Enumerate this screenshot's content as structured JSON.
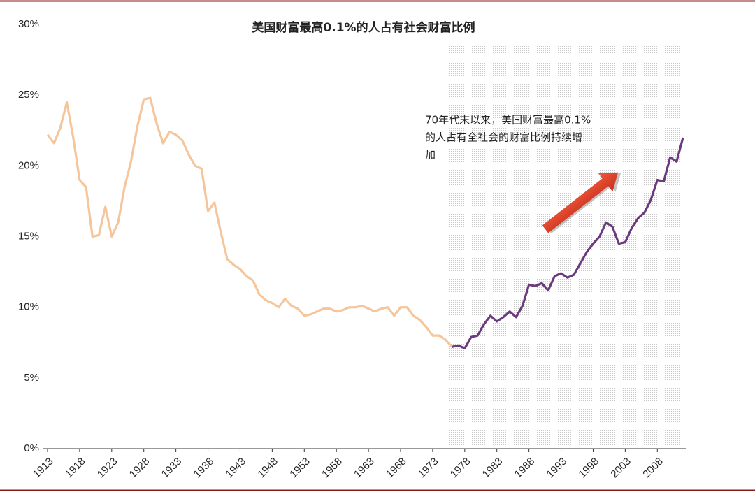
{
  "chart_data": {
    "type": "line",
    "title": "美国财富最高0.1%的人占有社会财富比例",
    "annotation": [
      "70年代末以来，美国财富最高0.1%",
      "的人占有全社会的财富比例持续增",
      "加"
    ],
    "highlight_xrange": [
      1976,
      2012
    ],
    "x": [
      1913,
      1914,
      1915,
      1916,
      1917,
      1918,
      1919,
      1920,
      1921,
      1922,
      1923,
      1924,
      1925,
      1926,
      1927,
      1928,
      1929,
      1930,
      1931,
      1932,
      1933,
      1934,
      1935,
      1936,
      1937,
      1938,
      1939,
      1940,
      1941,
      1942,
      1943,
      1944,
      1945,
      1946,
      1947,
      1948,
      1949,
      1950,
      1951,
      1952,
      1953,
      1954,
      1955,
      1956,
      1957,
      1958,
      1959,
      1960,
      1961,
      1962,
      1963,
      1964,
      1965,
      1966,
      1967,
      1968,
      1969,
      1970,
      1971,
      1972,
      1973,
      1974,
      1975,
      1976,
      1977,
      1978,
      1979,
      1980,
      1981,
      1982,
      1983,
      1984,
      1985,
      1986,
      1987,
      1988,
      1989,
      1990,
      1991,
      1992,
      1993,
      1994,
      1995,
      1996,
      1997,
      1998,
      1999,
      2000,
      2001,
      2002,
      2003,
      2004,
      2005,
      2006,
      2007,
      2008,
      2009,
      2010,
      2011,
      2012
    ],
    "series": [
      {
        "color": "#f5c59b",
        "values": [
          22.2,
          21.6,
          22.7,
          24.5,
          22.0,
          19.0,
          18.5,
          15.0,
          15.1,
          17.1,
          15.0,
          16.0,
          18.5,
          20.3,
          22.8,
          24.7,
          24.8,
          23.0,
          21.6,
          22.4,
          22.2,
          21.8,
          20.8,
          20.0,
          19.8,
          16.8,
          17.4,
          15.3,
          13.4,
          13.0,
          12.7,
          12.2,
          11.9,
          10.9,
          10.5,
          10.3,
          10.0,
          10.6,
          10.1,
          9.9,
          9.4,
          9.5,
          9.7,
          9.9,
          9.9,
          9.7,
          9.8,
          10.0,
          10.0,
          10.1,
          9.9,
          9.7,
          9.9,
          10.0,
          9.4,
          10.0,
          10.0,
          9.4,
          9.1,
          8.6,
          8.0,
          8.0,
          7.7,
          7.2,
          null,
          null,
          null,
          null,
          null,
          null,
          null,
          null,
          null,
          null,
          null,
          null,
          null,
          null,
          null,
          null,
          null,
          null,
          null,
          null,
          null,
          null,
          null,
          null,
          null,
          null,
          null,
          null,
          null,
          null,
          null,
          null,
          null,
          null,
          null,
          null
        ]
      },
      {
        "color": "#6b3a7d",
        "values": [
          null,
          null,
          null,
          null,
          null,
          null,
          null,
          null,
          null,
          null,
          null,
          null,
          null,
          null,
          null,
          null,
          null,
          null,
          null,
          null,
          null,
          null,
          null,
          null,
          null,
          null,
          null,
          null,
          null,
          null,
          null,
          null,
          null,
          null,
          null,
          null,
          null,
          null,
          null,
          null,
          null,
          null,
          null,
          null,
          null,
          null,
          null,
          null,
          null,
          null,
          null,
          null,
          null,
          null,
          null,
          null,
          null,
          null,
          null,
          null,
          null,
          null,
          null,
          7.2,
          7.3,
          7.1,
          7.9,
          8.0,
          8.8,
          9.4,
          9.0,
          9.3,
          9.7,
          9.3,
          10.1,
          11.6,
          11.5,
          11.7,
          11.2,
          12.2,
          12.4,
          12.1,
          12.3,
          13.1,
          13.9,
          14.5,
          15.0,
          16.0,
          15.7,
          14.5,
          14.6,
          15.6,
          16.3,
          16.7,
          17.6,
          19.0,
          18.9,
          20.6,
          20.3,
          22.0
        ]
      }
    ],
    "xlim": [
      1913,
      2012
    ],
    "xticks": [
      1913,
      1918,
      1923,
      1928,
      1933,
      1938,
      1943,
      1948,
      1953,
      1958,
      1963,
      1968,
      1973,
      1978,
      1983,
      1988,
      1993,
      1998,
      2003,
      2008
    ],
    "ylim": [
      0,
      30
    ],
    "yticks": [
      {
        "value": 0,
        "label": "0%"
      },
      {
        "value": 5,
        "label": "5%"
      },
      {
        "value": 10,
        "label": "10%"
      },
      {
        "value": 15,
        "label": "15%"
      },
      {
        "value": 20,
        "label": "20%"
      },
      {
        "value": 25,
        "label": "25%"
      },
      {
        "value": 30,
        "label": "30%"
      }
    ]
  }
}
